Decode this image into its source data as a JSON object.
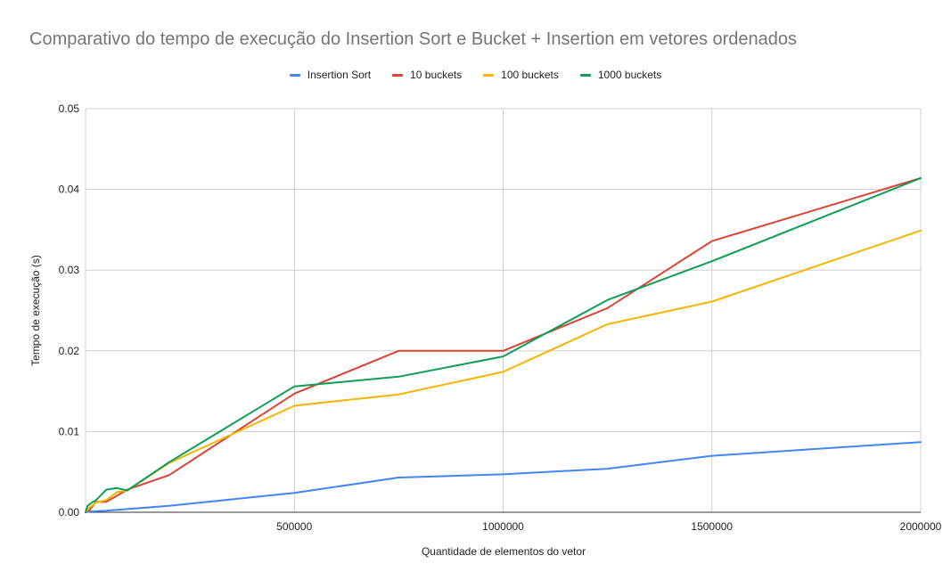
{
  "chart_data": {
    "type": "line",
    "title": "Comparativo do tempo de execução do Insertion Sort e Bucket + Insertion em vetores ordenados",
    "xlabel": "Quantidade de elementos do vetor",
    "ylabel": "Tempo de execução (s)",
    "xlim": [
      0,
      2000000
    ],
    "ylim": [
      0,
      0.05
    ],
    "x_ticks": [
      500000,
      1000000,
      1500000,
      2000000
    ],
    "x_tick_labels": [
      "500000",
      "1000000",
      "1500000",
      "2000000"
    ],
    "y_ticks": [
      0,
      0.01,
      0.02,
      0.03,
      0.04,
      0.05
    ],
    "y_tick_labels": [
      "0.00",
      "0.01",
      "0.02",
      "0.03",
      "0.04",
      "0.05"
    ],
    "grid": true,
    "legend_position": "top",
    "series": [
      {
        "name": "Insertion Sort",
        "color": "#4285F4",
        "points": [
          [
            0,
            0.0
          ],
          [
            10000,
            0.0001
          ],
          [
            50000,
            0.0002
          ],
          [
            100000,
            0.0004
          ],
          [
            200000,
            0.0008
          ],
          [
            500000,
            0.0024
          ],
          [
            750000,
            0.0043
          ],
          [
            1000000,
            0.0047
          ],
          [
            1250000,
            0.0054
          ],
          [
            1500000,
            0.007
          ],
          [
            2000000,
            0.0087
          ]
        ]
      },
      {
        "name": "10 buckets",
        "color": "#DB4437",
        "points": [
          [
            0,
            0.0
          ],
          [
            10000,
            0.0003
          ],
          [
            25000,
            0.0013
          ],
          [
            50000,
            0.0013
          ],
          [
            100000,
            0.0028
          ],
          [
            200000,
            0.0046
          ],
          [
            500000,
            0.0147
          ],
          [
            750000,
            0.02
          ],
          [
            1000000,
            0.02
          ],
          [
            1250000,
            0.0253
          ],
          [
            1500000,
            0.0336
          ],
          [
            2000000,
            0.0414
          ]
        ]
      },
      {
        "name": "100 buckets",
        "color": "#F4B400",
        "points": [
          [
            0,
            0.0
          ],
          [
            10000,
            0.0006
          ],
          [
            25000,
            0.0012
          ],
          [
            50000,
            0.0015
          ],
          [
            75000,
            0.0025
          ],
          [
            100000,
            0.0027
          ],
          [
            200000,
            0.0061
          ],
          [
            500000,
            0.0132
          ],
          [
            750000,
            0.0146
          ],
          [
            1000000,
            0.0174
          ],
          [
            1250000,
            0.0233
          ],
          [
            1500000,
            0.0261
          ],
          [
            2000000,
            0.0349
          ]
        ]
      },
      {
        "name": "1000 buckets",
        "color": "#0F9D58",
        "points": [
          [
            0,
            0.0
          ],
          [
            5000,
            0.0008
          ],
          [
            15000,
            0.0012
          ],
          [
            25000,
            0.0015
          ],
          [
            50000,
            0.0028
          ],
          [
            75000,
            0.003
          ],
          [
            100000,
            0.0027
          ],
          [
            200000,
            0.0062
          ],
          [
            500000,
            0.0156
          ],
          [
            750000,
            0.0168
          ],
          [
            1000000,
            0.0193
          ],
          [
            1250000,
            0.0263
          ],
          [
            1500000,
            0.0311
          ],
          [
            2000000,
            0.0414
          ]
        ]
      }
    ]
  }
}
